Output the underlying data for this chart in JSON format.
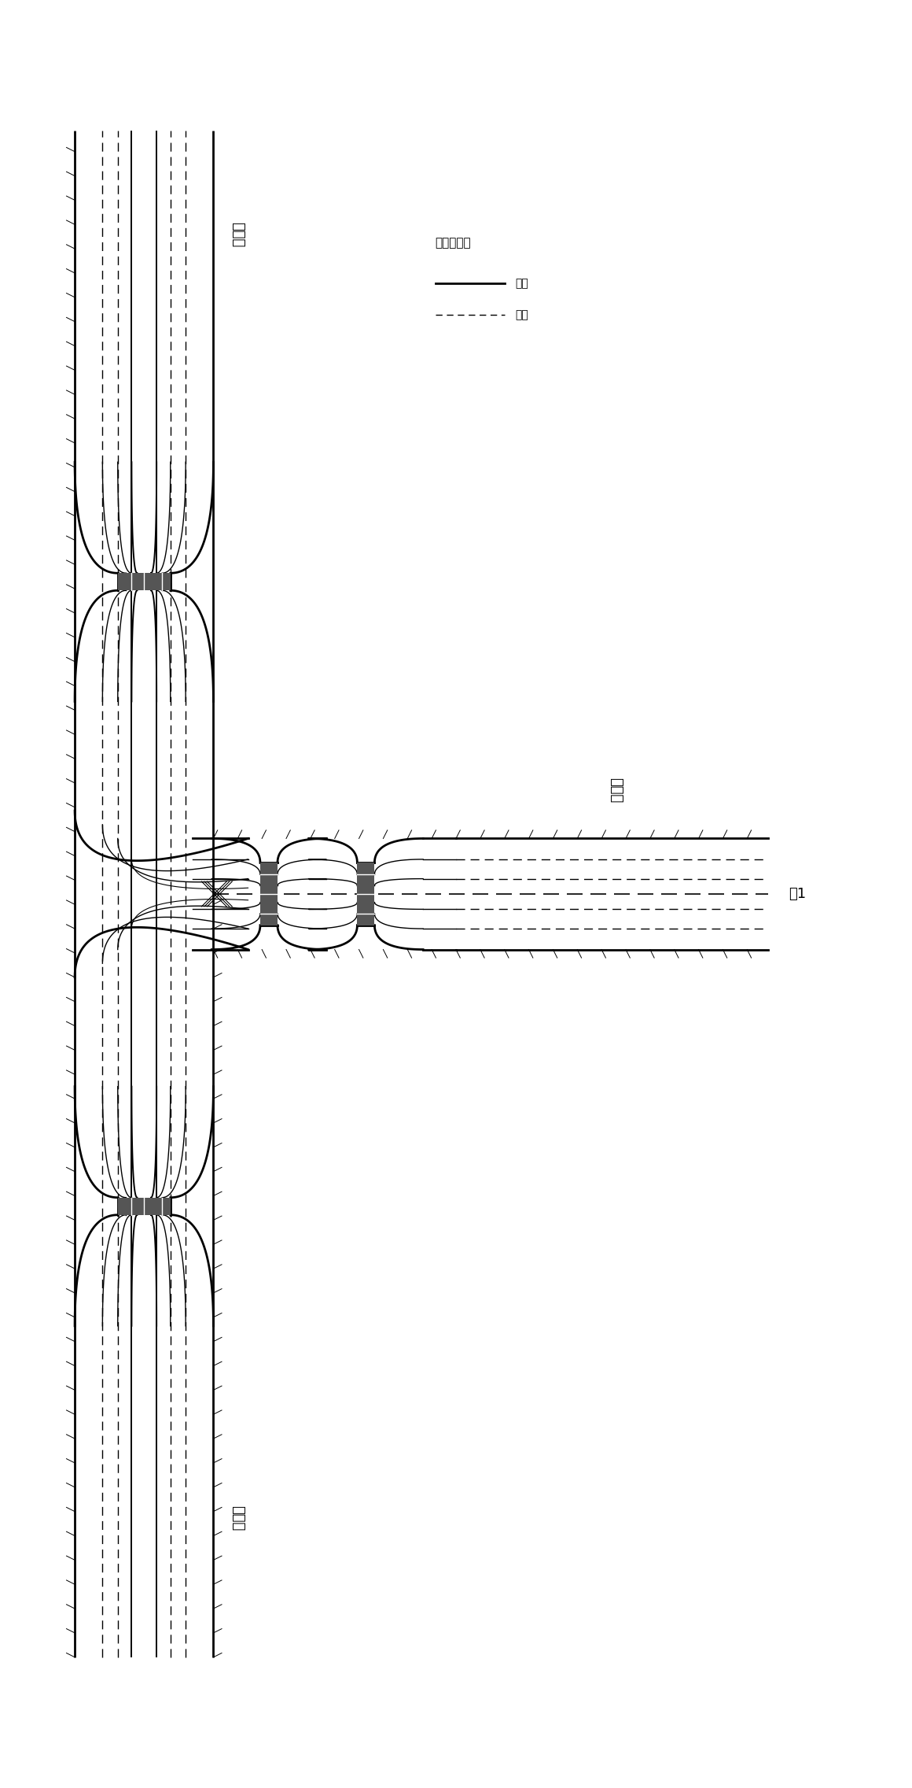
{
  "bg_color": "#ffffff",
  "line_color": "#000000",
  "dark_color": "#333333",
  "figsize": [
    11.6,
    22.72
  ],
  "dpi": 100,
  "label_north_top": "主干路",
  "label_north_bottom": "主干路",
  "label_east": "次干路",
  "label_figure": "图1",
  "legend_title": "行车轨迹线",
  "legend_primary": "主线",
  "legend_secondary": "次线"
}
